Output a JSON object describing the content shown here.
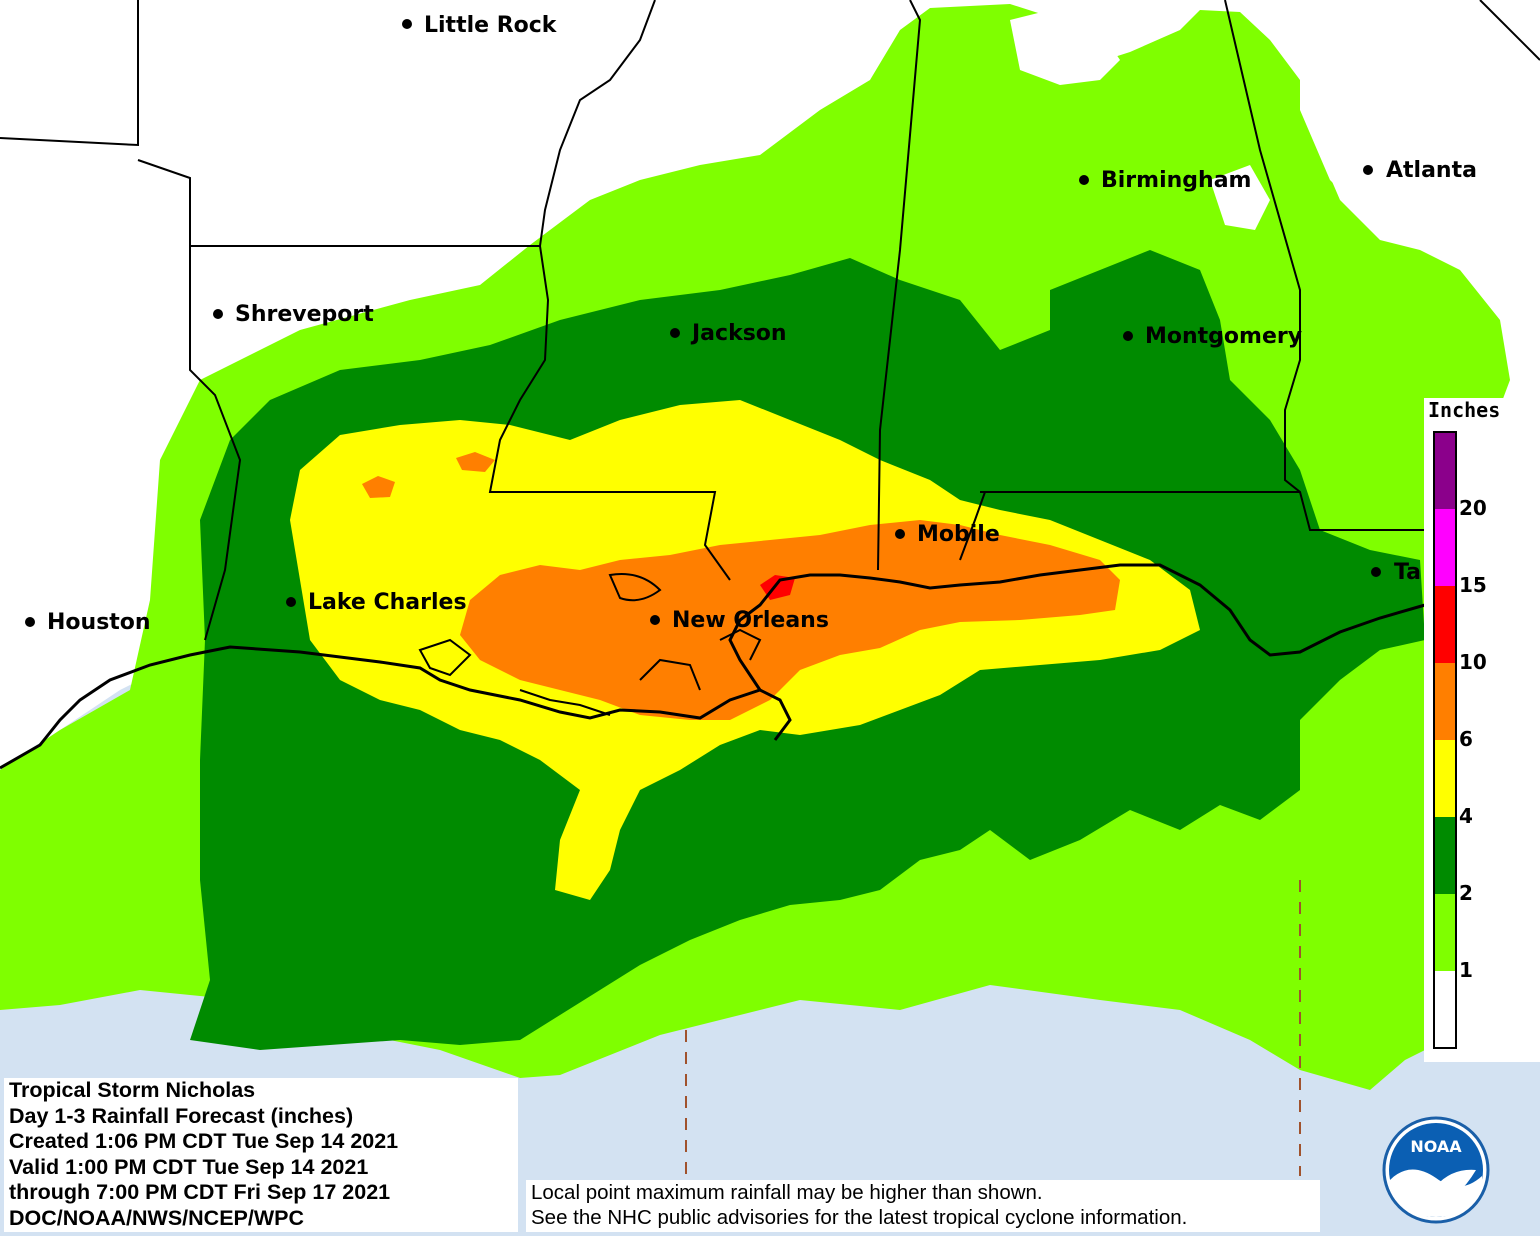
{
  "map": {
    "cities": [
      {
        "name": "Little Rock"
      },
      {
        "name": "Birmingham"
      },
      {
        "name": "Atlanta"
      },
      {
        "name": "Shreveport"
      },
      {
        "name": "Jackson"
      },
      {
        "name": "Montgomery"
      },
      {
        "name": "Mobile"
      },
      {
        "name": "Lake Charles"
      },
      {
        "name": "Houston"
      },
      {
        "name": "New Orleans"
      },
      {
        "name": "Ta"
      }
    ],
    "colors": {
      "gulf_water": "#d3e2f2",
      "rain_1_2": "#7fff00",
      "rain_2_4": "#008b00",
      "rain_4_6": "#ffff00",
      "rain_6_10": "#ff7f00",
      "rain_10_15": "#ff0000",
      "rain_15_20": "#ff00ff",
      "rain_20_plus": "#8b008b"
    }
  },
  "legend": {
    "title": "Inches",
    "ticks": [
      "20",
      "15",
      "10",
      "6",
      "4",
      "2",
      "1"
    ],
    "colors": [
      "#8b008b",
      "#ff00ff",
      "#ff0000",
      "#ff7f00",
      "#ffff00",
      "#008b00",
      "#7fff00",
      "#ffffff"
    ]
  },
  "info": {
    "line1": "Tropical Storm Nicholas",
    "line2": "Day 1-3 Rainfall Forecast (inches)",
    "line3": "Created 1:06 PM CDT Tue Sep 14 2021",
    "line4": "Valid 1:00 PM CDT Tue Sep 14 2021",
    "line5": "through 7:00 PM CDT Fri Sep 17 2021",
    "line6": "DOC/NOAA/NWS/NCEP/WPC"
  },
  "disclaimer": {
    "line1": "Local point maximum rainfall may be higher than shown.",
    "line2": "See the NHC public advisories for the latest tropical cyclone information."
  },
  "logo": {
    "text": "NOAA"
  }
}
